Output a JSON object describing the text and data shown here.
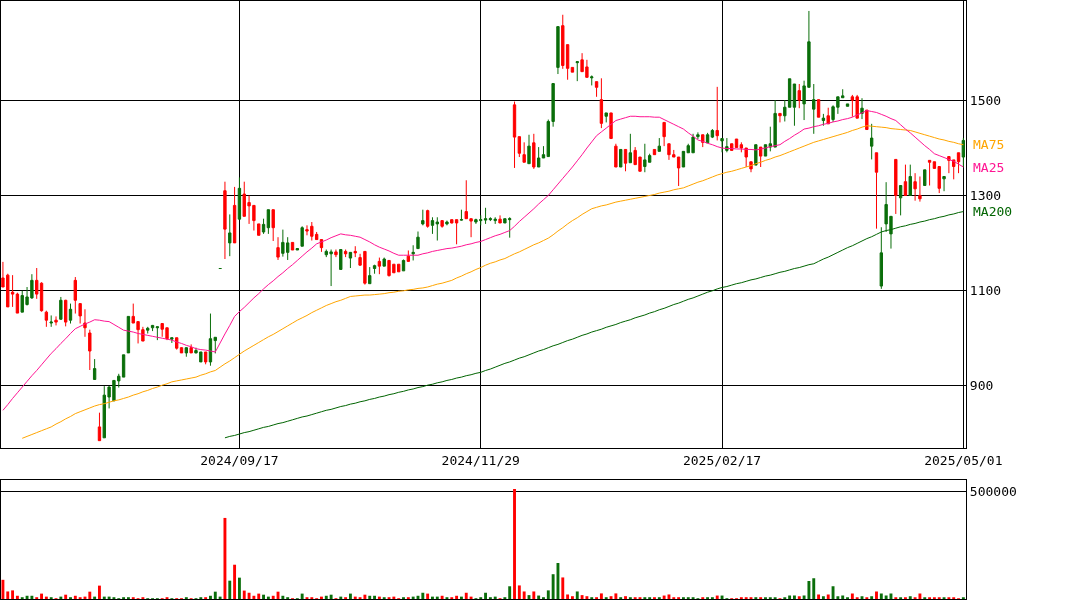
{
  "chart_data": [
    {
      "type": "candlestick",
      "grid": true,
      "legend": false,
      "categories": [
        null,
        null,
        null,
        null,
        null,
        null,
        null,
        null,
        null,
        null,
        null,
        null,
        null,
        null,
        null,
        null,
        null,
        null,
        null,
        null,
        null,
        null,
        null,
        null,
        null,
        null,
        null,
        null,
        null,
        null,
        null,
        null,
        null,
        null,
        null,
        null,
        null,
        null,
        null,
        null,
        null,
        null,
        null,
        null,
        null,
        null,
        null,
        null,
        null,
        "2024/09/17",
        null,
        null,
        null,
        null,
        null,
        null,
        null,
        null,
        null,
        null,
        null,
        null,
        null,
        null,
        null,
        null,
        null,
        null,
        null,
        null,
        null,
        null,
        null,
        null,
        null,
        null,
        null,
        null,
        null,
        null,
        null,
        null,
        null,
        null,
        null,
        null,
        null,
        null,
        null,
        null,
        null,
        null,
        null,
        null,
        null,
        null,
        null,
        null,
        null,
        "2024/11/29",
        null,
        null,
        null,
        null,
        null,
        null,
        null,
        null,
        null,
        null,
        null,
        null,
        null,
        null,
        null,
        null,
        null,
        null,
        null,
        null,
        null,
        null,
        null,
        null,
        null,
        null,
        null,
        null,
        null,
        null,
        null,
        null,
        null,
        null,
        null,
        null,
        null,
        null,
        null,
        null,
        null,
        null,
        null,
        null,
        null,
        null,
        null,
        null,
        null,
        "2025/02/17",
        null,
        null,
        null,
        null,
        null,
        null,
        null,
        null,
        null,
        null,
        null,
        null,
        null,
        null,
        null,
        null,
        null,
        null,
        null,
        null,
        null,
        null,
        null,
        null,
        null,
        null,
        null,
        null,
        null,
        null,
        null,
        null,
        null,
        null,
        null,
        null,
        null,
        null,
        null,
        null,
        null,
        null,
        null,
        null,
        null,
        null,
        null,
        null,
        null,
        "2025/05/01"
      ],
      "ohlc": [
        [
          1126,
          1160,
          1107,
          1107
        ],
        [
          1132,
          1135,
          1065,
          1065
        ],
        [
          1096,
          1132,
          1065,
          1092
        ],
        [
          1092,
          1095,
          1052,
          1052
        ],
        [
          1054,
          1099,
          1054,
          1089
        ],
        [
          1070,
          1107,
          1068,
          1086
        ],
        [
          1084,
          1134,
          1082,
          1121
        ],
        [
          1121,
          1147,
          1082,
          1092
        ],
        [
          1115,
          1117,
          1055,
          1057
        ],
        [
          1054,
          1057,
          1023,
          1037
        ],
        [
          1031,
          1047,
          1023,
          1033
        ],
        [
          1037,
          1045,
          1026,
          1033
        ],
        [
          1039,
          1086,
          1038,
          1079
        ],
        [
          1079,
          1080,
          1024,
          1033
        ],
        [
          1037,
          1072,
          1030,
          1060
        ],
        [
          1121,
          1128,
          1051,
          1079
        ],
        [
          1072,
          1072,
          1030,
          1046
        ],
        [
          1031,
          1060,
          1002,
          1021
        ],
        [
          1010,
          1017,
          932,
          972
        ],
        [
          912,
          955,
          912,
          935
        ],
        [
          812,
          842,
          783,
          783
        ],
        [
          789,
          898,
          789,
          879
        ],
        [
          875,
          898,
          851,
          896
        ],
        [
          867,
          910,
          867,
          910
        ],
        [
          909,
          924,
          895,
          919
        ],
        [
          917,
          964,
          917,
          964
        ],
        [
          968,
          1045,
          968,
          1045
        ],
        [
          1045,
          1072,
          1031,
          1031
        ],
        [
          1034,
          1034,
          988,
          1017
        ],
        [
          1017,
          1023,
          993,
          993
        ],
        [
          1016,
          1023,
          1009,
          1020
        ],
        [
          1021,
          1027,
          1014,
          1026
        ],
        [
          1021,
          1023,
          995,
          1023
        ],
        [
          1030,
          1031,
          1002,
          1018
        ],
        [
          1021,
          1021,
          995,
          998
        ],
        [
          997,
          1000,
          989,
          1000
        ],
        [
          1000,
          1000,
          975,
          978
        ],
        [
          979,
          980,
          968,
          968
        ],
        [
          968,
          980,
          960,
          979
        ],
        [
          979,
          986,
          968,
          968
        ],
        [
          968,
          979,
          967,
          973
        ],
        [
          949,
          970,
          949,
          970
        ],
        [
          970,
          970,
          944,
          949
        ],
        [
          949,
          1051,
          941,
          998
        ],
        [
          994,
          1001,
          967,
          1001
        ],
        [
          1146,
          1146,
          1146,
          1146
        ],
        [
          1310,
          1329,
          1166,
          1229
        ],
        [
          1200,
          1260,
          1172,
          1221
        ],
        [
          1279,
          1318,
          1200,
          1200
        ],
        [
          1250,
          1338,
          1250,
          1315
        ],
        [
          1303,
          1329,
          1256,
          1256
        ],
        [
          1285,
          1300,
          1240,
          1278
        ],
        [
          1279,
          1279,
          1226,
          1247
        ],
        [
          1240,
          1240,
          1216,
          1216
        ],
        [
          1223,
          1251,
          1219,
          1239
        ],
        [
          1232,
          1270,
          1219,
          1270
        ],
        [
          1270,
          1270,
          1204,
          1232
        ],
        [
          1190,
          1212,
          1164,
          1170
        ],
        [
          1178,
          1228,
          1171,
          1201
        ],
        [
          1180,
          1212,
          1164,
          1200
        ],
        [
          1201,
          1201,
          1185,
          1185
        ],
        [
          1185,
          1188,
          1185,
          1188
        ],
        [
          1193,
          1235,
          1193,
          1232
        ],
        [
          1228,
          1237,
          1216,
          1225
        ],
        [
          1235,
          1244,
          1205,
          1214
        ],
        [
          1218,
          1223,
          1207,
          1207
        ],
        [
          1207,
          1207,
          1181,
          1190
        ],
        [
          1175,
          1186,
          1170,
          1182
        ],
        [
          1177,
          1186,
          1109,
          1181
        ],
        [
          1181,
          1186,
          1170,
          1175
        ],
        [
          1144,
          1186,
          1144,
          1186
        ],
        [
          1182,
          1186,
          1170,
          1177
        ],
        [
          1168,
          1180,
          1147,
          1180
        ],
        [
          1182,
          1193,
          1170,
          1179
        ],
        [
          1169,
          1177,
          1152,
          1153
        ],
        [
          1182,
          1182,
          1112,
          1115
        ],
        [
          1114,
          1149,
          1114,
          1131
        ],
        [
          1146,
          1154,
          1135,
          1152
        ],
        [
          1161,
          1169,
          1134,
          1151
        ],
        [
          1151,
          1169,
          1151,
          1166
        ],
        [
          1163,
          1163,
          1129,
          1131
        ],
        [
          1155,
          1155,
          1137,
          1137
        ],
        [
          1155,
          1155,
          1139,
          1139
        ],
        [
          1141,
          1165,
          1141,
          1163
        ],
        [
          1172,
          1184,
          1161,
          1161
        ],
        [
          1177,
          1195,
          1163,
          1180
        ],
        [
          1188,
          1224,
          1188,
          1212
        ],
        [
          1240,
          1270,
          1237,
          1247
        ],
        [
          1268,
          1270,
          1232,
          1235
        ],
        [
          1237,
          1254,
          1219,
          1247
        ],
        [
          1240,
          1254,
          1205,
          1244
        ],
        [
          1247,
          1247,
          1232,
          1235
        ],
        [
          1240,
          1247,
          1237,
          1244
        ],
        [
          1249,
          1249,
          1241,
          1242
        ],
        [
          1249,
          1249,
          1197,
          1242
        ],
        [
          1248,
          1270,
          1247,
          1249
        ],
        [
          1266,
          1332,
          1251,
          1251
        ],
        [
          1251,
          1251,
          1212,
          1246
        ],
        [
          1244,
          1251,
          1240,
          1249
        ],
        [
          1247,
          1258,
          1237,
          1249
        ],
        [
          1248,
          1274,
          1240,
          1251
        ],
        [
          1249,
          1254,
          1246,
          1251
        ],
        [
          1247,
          1254,
          1240,
          1250
        ],
        [
          1250,
          1258,
          1242,
          1242
        ],
        [
          1242,
          1251,
          1242,
          1251
        ],
        [
          1249,
          1254,
          1211,
          1251
        ],
        [
          1491,
          1498,
          1358,
          1423
        ],
        [
          1424,
          1424,
          1381,
          1389
        ],
        [
          1386,
          1412,
          1370,
          1370
        ],
        [
          1367,
          1428,
          1367,
          1404
        ],
        [
          1411,
          1430,
          1356,
          1360
        ],
        [
          1360,
          1402,
          1360,
          1379
        ],
        [
          1379,
          1404,
          1379,
          1386
        ],
        [
          1382,
          1460,
          1382,
          1456
        ],
        [
          1456,
          1536,
          1445,
          1536
        ],
        [
          1570,
          1656,
          1556,
          1656
        ],
        [
          1658,
          1681,
          1567,
          1574
        ],
        [
          1618,
          1618,
          1544,
          1568
        ],
        [
          1570,
          1570,
          1560,
          1560
        ],
        [
          1580,
          1582,
          1541,
          1582
        ],
        [
          1586,
          1600,
          1561,
          1561
        ],
        [
          1571,
          1586,
          1549,
          1549
        ],
        [
          1548,
          1553,
          1532,
          1550
        ],
        [
          1540,
          1540,
          1508,
          1528
        ],
        [
          1502,
          1547,
          1442,
          1452
        ],
        [
          1467,
          1474,
          1454,
          1474
        ],
        [
          1474,
          1474,
          1420,
          1420
        ],
        [
          1404,
          1409,
          1360,
          1360
        ],
        [
          1360,
          1397,
          1360,
          1397
        ],
        [
          1397,
          1397,
          1351,
          1368
        ],
        [
          1369,
          1430,
          1369,
          1390
        ],
        [
          1395,
          1402,
          1365,
          1365
        ],
        [
          1381,
          1381,
          1351,
          1351
        ],
        [
          1361,
          1409,
          1349,
          1375
        ],
        [
          1370,
          1388,
          1370,
          1384
        ],
        [
          1397,
          1397,
          1386,
          1386
        ],
        [
          1393,
          1421,
          1393,
          1404
        ],
        [
          1454,
          1454,
          1404,
          1424
        ],
        [
          1409,
          1409,
          1375,
          1386
        ],
        [
          1386,
          1396,
          1381,
          1381
        ],
        [
          1381,
          1381,
          1320,
          1358
        ],
        [
          1360,
          1393,
          1360,
          1393
        ],
        [
          1390,
          1409,
          1390,
          1405
        ],
        [
          1390,
          1430,
          1390,
          1423
        ],
        [
          1424,
          1433,
          1419,
          1428
        ],
        [
          1428,
          1428,
          1402,
          1412
        ],
        [
          1411,
          1432,
          1411,
          1428
        ],
        [
          1423,
          1440,
          1421,
          1437
        ],
        [
          1437,
          1529,
          1416,
          1426
        ],
        [
          1415,
          1421,
          1391,
          1420
        ],
        [
          1395,
          1421,
          1391,
          1403
        ],
        [
          1409,
          1409,
          1395,
          1395
        ],
        [
          1419,
          1419,
          1401,
          1401
        ],
        [
          1407,
          1412,
          1391,
          1400
        ],
        [
          1400,
          1400,
          1360,
          1381
        ],
        [
          1371,
          1371,
          1349,
          1356
        ],
        [
          1364,
          1407,
          1364,
          1407
        ],
        [
          1402,
          1402,
          1360,
          1383
        ],
        [
          1383,
          1407,
          1383,
          1407
        ],
        [
          1402,
          1445,
          1393,
          1409
        ],
        [
          1402,
          1501,
          1402,
          1473
        ],
        [
          1473,
          1473,
          1454,
          1468
        ],
        [
          1468,
          1501,
          1456,
          1486
        ],
        [
          1486,
          1546,
          1486,
          1546
        ],
        [
          1486,
          1535,
          1447,
          1535
        ],
        [
          1521,
          1535,
          1484,
          1501
        ],
        [
          1493,
          1542,
          1459,
          1531
        ],
        [
          1528,
          1689,
          1528,
          1624
        ],
        [
          1482,
          1535,
          1430,
          1502
        ],
        [
          1502,
          1502,
          1465,
          1465
        ],
        [
          1458,
          1472,
          1447,
          1463
        ],
        [
          1468,
          1485,
          1451,
          1451
        ],
        [
          1460,
          1490,
          1455,
          1487
        ],
        [
          1486,
          1508,
          1472,
          1508
        ],
        [
          1506,
          1524,
          1506,
          1510
        ],
        [
          1488,
          1493,
          1488,
          1493
        ],
        [
          1508,
          1512,
          1466,
          1501
        ],
        [
          1508,
          1512,
          1463,
          1463
        ],
        [
          1473,
          1505,
          1461,
          1484
        ],
        [
          1480,
          1480,
          1439,
          1439
        ],
        [
          1404,
          1451,
          1376,
          1421
        ],
        [
          1390,
          1390,
          1230,
          1349
        ],
        [
          1109,
          1233,
          1103,
          1179
        ],
        [
          1240,
          1328,
          1223,
          1281
        ],
        [
          1219,
          1256,
          1188,
          1256
        ],
        [
          1376,
          1376,
          1261,
          1300
        ],
        [
          1295,
          1321,
          1258,
          1321
        ],
        [
          1329,
          1365,
          1300,
          1300
        ],
        [
          1300,
          1365,
          1300,
          1340
        ],
        [
          1329,
          1347,
          1289,
          1314
        ],
        [
          1300,
          1340,
          1287,
          1293
        ],
        [
          1321,
          1354,
          1321,
          1354
        ],
        [
          1374,
          1374,
          1321,
          1370
        ],
        [
          1371,
          1371,
          1357,
          1357
        ],
        [
          1361,
          1361,
          1305,
          1315
        ],
        [
          1335,
          1340,
          1309,
          1340
        ],
        [
          1382,
          1382,
          1347,
          1374
        ],
        [
          1375,
          1375,
          1334,
          1361
        ],
        [
          1390,
          1390,
          1347,
          1371
        ],
        [
          1381,
          1421,
          1360,
          1416
        ]
      ],
      "series": [
        {
          "name": "MA75",
          "type": "line",
          "color": "#ffa500",
          "values": [
            null,
            null,
            null,
            null,
            788,
            792,
            796,
            800,
            804,
            808,
            812,
            818,
            823,
            829,
            834,
            840,
            844,
            848,
            852,
            856,
            859,
            861,
            864,
            867,
            869,
            872,
            875,
            879,
            882,
            886,
            889,
            893,
            896,
            900,
            903,
            907,
            909,
            911,
            913,
            915,
            917,
            921,
            924,
            928,
            931,
            938,
            945,
            951,
            958,
            965,
            972,
            978,
            984,
            990,
            996,
            1002,
            1007,
            1013,
            1019,
            1025,
            1031,
            1037,
            1042,
            1047,
            1053,
            1058,
            1063,
            1068,
            1072,
            1076,
            1079,
            1083,
            1087,
            1088,
            1089,
            1090,
            1090,
            1091,
            1092,
            1093,
            1095,
            1096,
            1098,
            1099,
            1101,
            1102,
            1104,
            1105,
            1107,
            1110,
            1113,
            1115,
            1118,
            1121,
            1126,
            1130,
            1135,
            1139,
            1144,
            1148,
            1153,
            1157,
            1160,
            1164,
            1167,
            1172,
            1177,
            1181,
            1186,
            1191,
            1196,
            1200,
            1205,
            1210,
            1217,
            1225,
            1232,
            1240,
            1247,
            1253,
            1260,
            1266,
            1272,
            1275,
            1278,
            1280,
            1283,
            1286,
            1288,
            1290,
            1292,
            1294,
            1296,
            1298,
            1300,
            1302,
            1305,
            1307,
            1309,
            1312,
            1314,
            1316,
            1320,
            1324,
            1328,
            1331,
            1335,
            1339,
            1343,
            1346,
            1349,
            1351,
            1354,
            1357,
            1360,
            1363,
            1367,
            1370,
            1374,
            1377,
            1381,
            1384,
            1388,
            1392,
            1396,
            1400,
            1404,
            1408,
            1412,
            1415,
            1418,
            1421,
            1424,
            1427,
            1430,
            1433,
            1437,
            1440,
            1444,
            1447,
            1446,
            1445,
            1444,
            1443,
            1441,
            1440,
            1439,
            1438,
            1437,
            1434,
            1431,
            1428,
            1425,
            1422,
            1419,
            1417,
            1414,
            1412,
            1409,
            1407
          ]
        },
        {
          "name": "MA25",
          "type": "line",
          "color": "#ff1493",
          "values": [
            847,
            859,
            872,
            884,
            896,
            908,
            920,
            931,
            943,
            955,
            967,
            977,
            988,
            998,
            1009,
            1019,
            1024,
            1029,
            1033,
            1038,
            1037,
            1035,
            1034,
            1028,
            1022,
            1016,
            1014,
            1012,
            1009,
            1007,
            1005,
            1003,
            1001,
            999,
            997,
            995,
            991,
            988,
            984,
            981,
            977,
            975,
            974,
            972,
            970,
            989,
            1008,
            1026,
            1045,
            1055,
            1064,
            1074,
            1084,
            1093,
            1103,
            1112,
            1120,
            1129,
            1137,
            1146,
            1154,
            1163,
            1172,
            1181,
            1189,
            1198,
            1202,
            1206,
            1211,
            1215,
            1219,
            1217,
            1216,
            1214,
            1212,
            1207,
            1202,
            1196,
            1191,
            1187,
            1183,
            1178,
            1174,
            1174,
            1174,
            1174,
            1174,
            1177,
            1179,
            1182,
            1184,
            1186,
            1188,
            1189,
            1191,
            1193,
            1196,
            1198,
            1201,
            1203,
            1207,
            1211,
            1215,
            1218,
            1222,
            1226,
            1235,
            1245,
            1254,
            1263,
            1272,
            1282,
            1291,
            1300,
            1312,
            1324,
            1336,
            1348,
            1360,
            1373,
            1386,
            1400,
            1413,
            1426,
            1434,
            1442,
            1450,
            1458,
            1461,
            1464,
            1467,
            1467,
            1466,
            1466,
            1466,
            1465,
            1465,
            1460,
            1455,
            1450,
            1445,
            1440,
            1432,
            1425,
            1417,
            1414,
            1410,
            1407,
            1403,
            1400,
            1399,
            1399,
            1398,
            1398,
            1397,
            1397,
            1396,
            1398,
            1400,
            1403,
            1405,
            1407,
            1414,
            1420,
            1427,
            1433,
            1440,
            1442,
            1445,
            1447,
            1450,
            1452,
            1455,
            1457,
            1460,
            1462,
            1465,
            1470,
            1474,
            1479,
            1477,
            1475,
            1471,
            1467,
            1462,
            1458,
            1449,
            1440,
            1432,
            1423,
            1414,
            1405,
            1397,
            1388,
            1384,
            1380,
            1376,
            1372,
            1366,
            1360
          ]
        },
        {
          "name": "MA200",
          "type": "line",
          "color": "#006400",
          "values": [
            null,
            null,
            null,
            null,
            null,
            null,
            null,
            null,
            null,
            null,
            null,
            null,
            null,
            null,
            null,
            null,
            null,
            null,
            null,
            null,
            null,
            null,
            null,
            null,
            null,
            null,
            null,
            null,
            null,
            null,
            null,
            null,
            null,
            null,
            null,
            null,
            null,
            null,
            null,
            null,
            null,
            null,
            null,
            null,
            null,
            null,
            789,
            792,
            794,
            797,
            800,
            802,
            805,
            808,
            811,
            813,
            816,
            819,
            821,
            824,
            827,
            830,
            833,
            835,
            838,
            841,
            844,
            847,
            849,
            852,
            855,
            857,
            860,
            862,
            865,
            867,
            870,
            872,
            875,
            877,
            880,
            882,
            885,
            887,
            890,
            892,
            895,
            897,
            900,
            902,
            905,
            907,
            910,
            912,
            915,
            917,
            920,
            922,
            925,
            927,
            931,
            934,
            938,
            942,
            946,
            949,
            953,
            957,
            960,
            964,
            968,
            972,
            975,
            979,
            983,
            986,
            990,
            994,
            997,
            1001,
            1005,
            1008,
            1012,
            1015,
            1018,
            1022,
            1025,
            1028,
            1032,
            1035,
            1038,
            1042,
            1045,
            1048,
            1052,
            1055,
            1059,
            1062,
            1066,
            1070,
            1073,
            1077,
            1081,
            1084,
            1088,
            1092,
            1096,
            1099,
            1103,
            1106,
            1108,
            1111,
            1114,
            1116,
            1119,
            1122,
            1124,
            1127,
            1130,
            1132,
            1135,
            1138,
            1140,
            1143,
            1146,
            1148,
            1151,
            1154,
            1156,
            1161,
            1166,
            1170,
            1175,
            1180,
            1185,
            1190,
            1194,
            1199,
            1204,
            1209,
            1213,
            1218,
            1223,
            1226,
            1228,
            1231,
            1234,
            1236,
            1239,
            1241,
            1244,
            1246,
            1249,
            1251,
            1254,
            1256,
            1259,
            1261,
            1264,
            1266
          ]
        }
      ],
      "ylim": [
        767,
        1710
      ],
      "yticks": [
        900,
        1100,
        1300,
        1500
      ]
    },
    {
      "type": "bar",
      "grid": "y",
      "tick_labels": "y",
      "ylim": [
        0,
        551000
      ],
      "yticks": [
        500000
      ],
      "categories": [
        null,
        null,
        null,
        null,
        null,
        null,
        null,
        null,
        null,
        null,
        null,
        null,
        null,
        null,
        null,
        null,
        null,
        null,
        null,
        null,
        null,
        null,
        null,
        null,
        null,
        null,
        null,
        null,
        null,
        null,
        null,
        null,
        null,
        null,
        null,
        null,
        null,
        null,
        null,
        null,
        null,
        null,
        null,
        null,
        null,
        null,
        null,
        null,
        null,
        null,
        null,
        null,
        null,
        null,
        null,
        null,
        null,
        null,
        null,
        null,
        null,
        null,
        null,
        null,
        null,
        null,
        null,
        null,
        null,
        null,
        null,
        null,
        null,
        null,
        null,
        null,
        null,
        null,
        null,
        null,
        null,
        null,
        null,
        null,
        null,
        null,
        null,
        null,
        null,
        null,
        null,
        null,
        null,
        null,
        null,
        null,
        null,
        null,
        null,
        null,
        null,
        null,
        null,
        null,
        null,
        null,
        null,
        null,
        null,
        null,
        null,
        null,
        null,
        null,
        null,
        null,
        null,
        null,
        null,
        null,
        null,
        null,
        null,
        null,
        null,
        null,
        null,
        null,
        null,
        null,
        null,
        null,
        null,
        null,
        null,
        null,
        null,
        null,
        null,
        null,
        null,
        null,
        null,
        null,
        null,
        null,
        null,
        null,
        null,
        null,
        null,
        null,
        null,
        null,
        null,
        null,
        null,
        null,
        null,
        null,
        null,
        null,
        null,
        null,
        null,
        null,
        null,
        null,
        null,
        null,
        null,
        null,
        null,
        null,
        null,
        null,
        null,
        null,
        null,
        null,
        null,
        null,
        null,
        null,
        null,
        null,
        null,
        null,
        null,
        null,
        null,
        null,
        null,
        null,
        null,
        null,
        null,
        null,
        null,
        null
      ],
      "values": [
        89000,
        35000,
        40000,
        15000,
        6000,
        15000,
        15000,
        8000,
        25000,
        11000,
        6000,
        2000,
        11000,
        20000,
        6000,
        15000,
        6000,
        11000,
        34000,
        11000,
        62000,
        11000,
        11000,
        6000,
        2000,
        6000,
        6000,
        6000,
        2000,
        6000,
        2000,
        2000,
        2000,
        2000,
        6000,
        2000,
        2000,
        2000,
        6000,
        2000,
        2000,
        6000,
        6000,
        15000,
        34000,
        11000,
        376000,
        85000,
        159000,
        99000,
        39000,
        29000,
        15000,
        25000,
        20000,
        11000,
        15000,
        34000,
        15000,
        6000,
        2000,
        2000,
        25000,
        6000,
        6000,
        2000,
        11000,
        15000,
        20000,
        2000,
        11000,
        6000,
        25000,
        11000,
        6000,
        20000,
        15000,
        15000,
        11000,
        6000,
        6000,
        11000,
        2000,
        6000,
        6000,
        11000,
        15000,
        29000,
        25000,
        11000,
        11000,
        15000,
        6000,
        6000,
        15000,
        11000,
        29000,
        11000,
        2000,
        6000,
        29000,
        6000,
        11000,
        2000,
        8000,
        59000,
        510000,
        63000,
        35000,
        18000,
        35000,
        16000,
        8000,
        40000,
        115000,
        167000,
        100000,
        21000,
        13000,
        35000,
        18000,
        13000,
        8000,
        8000,
        26000,
        5000,
        13000,
        26000,
        8000,
        13000,
        8000,
        5000,
        5000,
        5000,
        5000,
        8000,
        5000,
        16000,
        21000,
        5000,
        5000,
        5000,
        5000,
        5000,
        2000,
        5000,
        5000,
        8000,
        16000,
        16000,
        2000,
        2000,
        2000,
        8000,
        5000,
        5000,
        5000,
        8000,
        8000,
        5000,
        8000,
        2000,
        8000,
        16000,
        16000,
        13000,
        16000,
        83000,
        96000,
        21000,
        13000,
        21000,
        59000,
        13000,
        16000,
        5000,
        26000,
        5000,
        13000,
        8000,
        13000,
        35000,
        26000,
        16000,
        26000,
        8000,
        5000,
        5000,
        13000,
        5000,
        26000,
        5000,
        5000,
        8000,
        8000,
        5000,
        5000,
        5000,
        2000,
        8000
      ]
    }
  ]
}
